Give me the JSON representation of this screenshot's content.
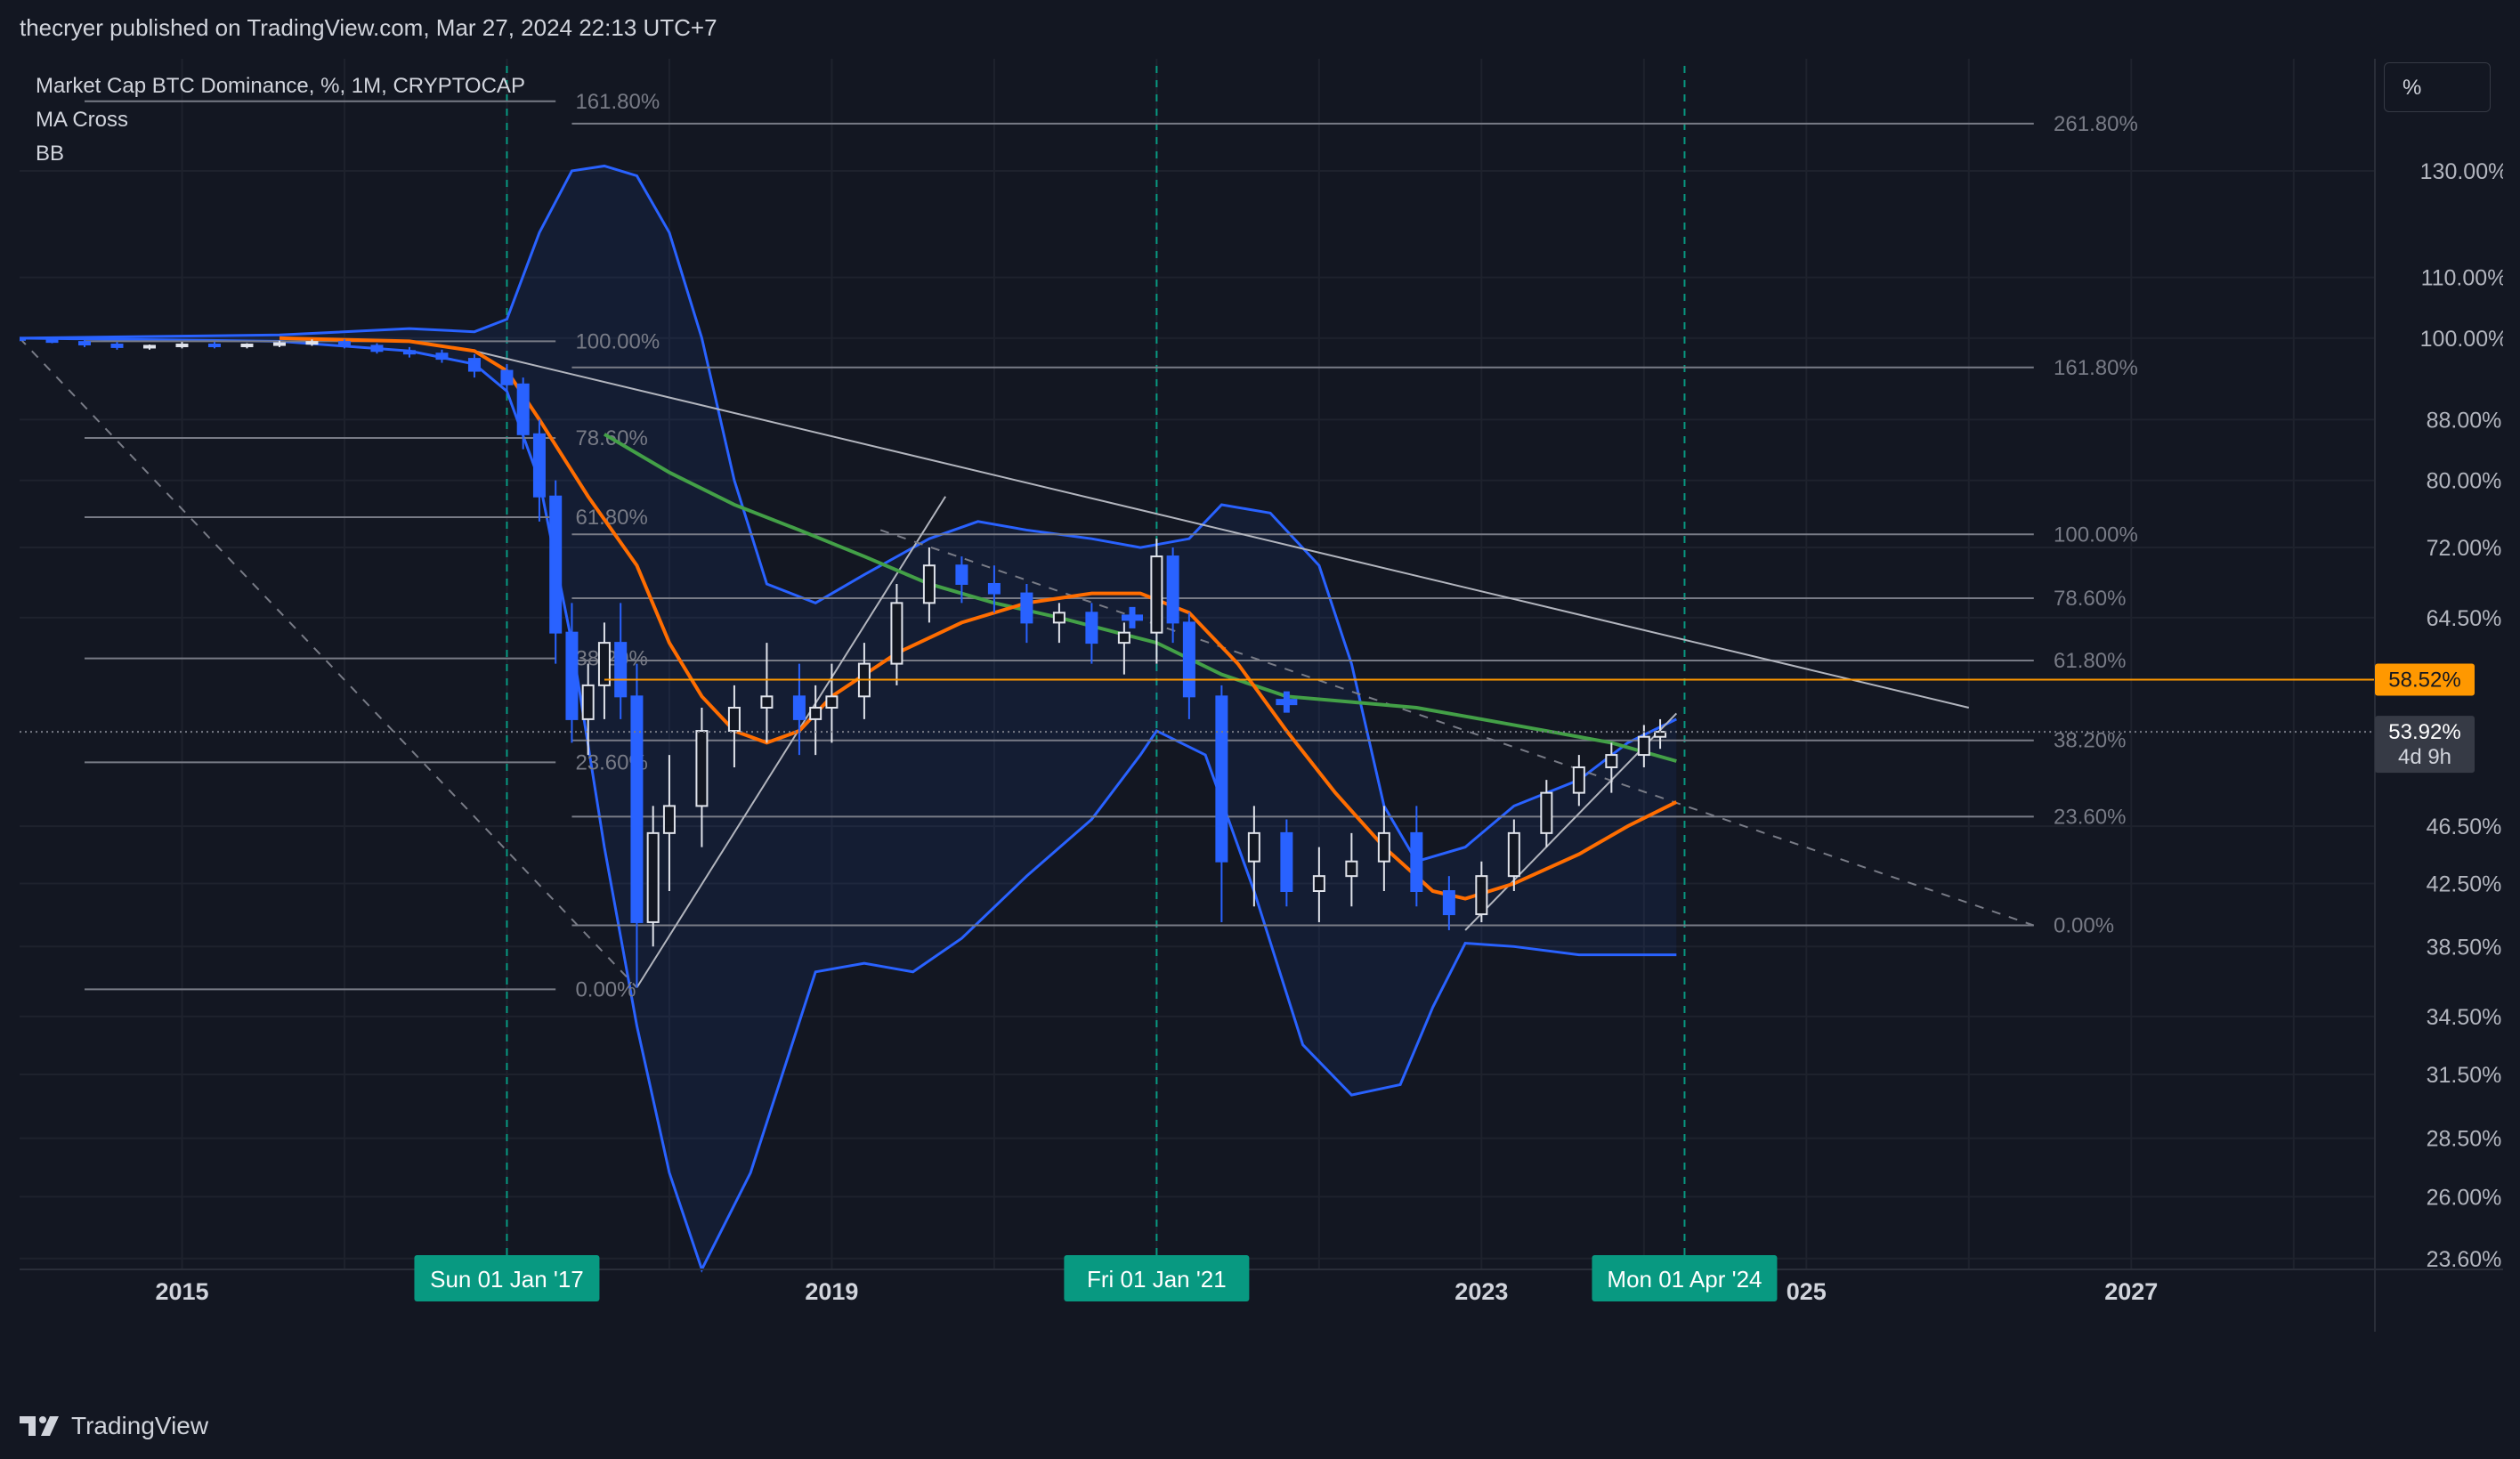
{
  "header": {
    "publisher": "thecryer published on TradingView.com, Mar 27, 2024 22:13 UTC+7"
  },
  "legend": {
    "symbol": "Market Cap BTC Dominance, %, 1M, CRYPTOCAP",
    "indicator1": "MA Cross",
    "indicator2": "BB"
  },
  "scale_button": {
    "label": "%"
  },
  "footer": {
    "brand": "TradingView"
  },
  "colors": {
    "background": "#131722",
    "grid": "#1e222d",
    "candle": "#2962ff",
    "bollinger": "#2962ff",
    "ma_fast": "#ff6d00",
    "ma_slow": "#43a047",
    "fib": "#787b86",
    "highlight_line": "#ff9800",
    "time_marker": "#089981"
  },
  "chart_data": {
    "type": "candlestick",
    "title": "Market Cap BTC Dominance, %, 1M, CRYPTOCAP",
    "y_scale": "log",
    "ylim": [
      23.2,
      155
    ],
    "xlim": [
      2014.0,
      2028.5
    ],
    "y_ticks": [
      "130.00%",
      "110.00%",
      "100.00%",
      "88.00%",
      "80.00%",
      "72.00%",
      "64.50%",
      "46.50%",
      "42.50%",
      "38.50%",
      "34.50%",
      "31.50%",
      "28.50%",
      "26.00%",
      "23.60%"
    ],
    "x_ticks": [
      "2015",
      "2019",
      "2023",
      "2027"
    ],
    "x_tick_years": [
      2015,
      2019,
      2023,
      2027
    ],
    "x_tick_partial": {
      "label": "025",
      "year": 2025
    },
    "time_markers": [
      {
        "label": "Sun 01 Jan '17",
        "year": 2017.0
      },
      {
        "label": "Fri 01 Jan '21",
        "year": 2021.0
      },
      {
        "label": "Mon 01 Apr '24",
        "year": 2024.25
      }
    ],
    "price_labels": [
      {
        "label": "58.52%",
        "value": 58.52,
        "color": "#ff9800"
      },
      {
        "label": "53.92%",
        "sublabel": "4d 9h",
        "value": 53.92,
        "color": "#363a45"
      }
    ],
    "horizontal_line": {
      "value": 58.52
    },
    "last_price_line": {
      "value": 53.92
    },
    "fib_sets": [
      {
        "x_start": 2014.4,
        "x_end": 2017.3,
        "label_year": 2017.4,
        "levels": [
          {
            "label": "161.80%",
            "value": 145
          },
          {
            "label": "100.00%",
            "value": 99.5
          },
          {
            "label": "78.60%",
            "value": 85.5
          },
          {
            "label": "61.80%",
            "value": 75.5
          },
          {
            "label": "38.20%",
            "value": 60.5
          },
          {
            "label": "23.60%",
            "value": 51.4
          },
          {
            "label": "0.00%",
            "value": 36.0
          }
        ]
      },
      {
        "x_start": 2017.4,
        "x_end": 2026.4,
        "label_year": 2026.5,
        "levels": [
          {
            "label": "261.80%",
            "value": 140
          },
          {
            "label": "161.80%",
            "value": 95.5
          },
          {
            "label": "100.00%",
            "value": 73.5
          },
          {
            "label": "78.60%",
            "value": 66.5
          },
          {
            "label": "61.80%",
            "value": 60.3
          },
          {
            "label": "38.20%",
            "value": 53.2
          },
          {
            "label": "23.60%",
            "value": 47.2
          },
          {
            "label": "0.00%",
            "value": 39.8
          }
        ]
      }
    ],
    "trend_lines": [
      {
        "style": "solid",
        "points": [
          [
            2016.8,
            98
          ],
          [
            2026.0,
            56.0
          ]
        ]
      },
      {
        "style": "solid",
        "points": [
          [
            2017.8,
            36.1
          ],
          [
            2019.7,
            78.0
          ]
        ]
      },
      {
        "style": "solid",
        "points": [
          [
            2022.9,
            39.5
          ],
          [
            2024.2,
            55.5
          ]
        ]
      },
      {
        "style": "dashed",
        "points": [
          [
            2014.0,
            100
          ],
          [
            2017.8,
            36.1
          ]
        ]
      },
      {
        "style": "dashed",
        "points": [
          [
            2019.3,
            74.0
          ],
          [
            2026.4,
            39.8
          ]
        ]
      }
    ],
    "series": [
      {
        "name": "Candles",
        "kind": "candlestick",
        "ohlc": [
          [
            2014.0,
            100,
            100,
            99.5,
            99.8
          ],
          [
            2014.2,
            99.8,
            100,
            99.2,
            99.4
          ],
          [
            2014.4,
            99.4,
            99.8,
            98.6,
            99
          ],
          [
            2014.6,
            99,
            99.4,
            98.2,
            98.6
          ],
          [
            2014.8,
            98.6,
            99,
            98.2,
            98.8
          ],
          [
            2015.0,
            98.8,
            99.4,
            98.4,
            99
          ],
          [
            2015.2,
            99,
            99.4,
            98.4,
            98.8
          ],
          [
            2015.4,
            98.8,
            99.2,
            98.4,
            99
          ],
          [
            2015.6,
            99,
            99.6,
            98.6,
            99.2
          ],
          [
            2015.8,
            99.2,
            99.8,
            98.8,
            99.4
          ],
          [
            2016.0,
            99.4,
            99.8,
            98.4,
            98.8
          ],
          [
            2016.2,
            98.8,
            99.2,
            97.6,
            98
          ],
          [
            2016.4,
            98,
            98.6,
            97,
            97.6
          ],
          [
            2016.6,
            97.6,
            98.2,
            96.2,
            96.8
          ],
          [
            2016.8,
            96.8,
            97.5,
            94,
            95
          ],
          [
            2017.0,
            95,
            96,
            92,
            93
          ],
          [
            2017.1,
            93,
            94,
            84,
            86
          ],
          [
            2017.2,
            86,
            88,
            75,
            78
          ],
          [
            2017.3,
            78,
            80,
            60,
            63
          ],
          [
            2017.4,
            63,
            66,
            53,
            55
          ],
          [
            2017.5,
            55,
            60,
            52,
            58
          ],
          [
            2017.6,
            58,
            64,
            55,
            62
          ],
          [
            2017.7,
            62,
            66,
            55,
            57
          ],
          [
            2017.8,
            57,
            60,
            36.1,
            40
          ],
          [
            2017.9,
            40,
            48,
            38.5,
            46
          ],
          [
            2018.0,
            46,
            52,
            42,
            48
          ],
          [
            2018.2,
            48,
            56,
            45,
            54
          ],
          [
            2018.4,
            54,
            58,
            51,
            56
          ],
          [
            2018.6,
            56,
            62,
            53,
            57
          ],
          [
            2018.8,
            57,
            60,
            52,
            55
          ],
          [
            2018.9,
            55,
            58,
            52,
            56
          ],
          [
            2019.0,
            56,
            60,
            53,
            57
          ],
          [
            2019.2,
            57,
            62,
            55,
            60
          ],
          [
            2019.4,
            60,
            68,
            58,
            66
          ],
          [
            2019.6,
            66,
            72,
            64,
            70
          ],
          [
            2019.8,
            70,
            71,
            66,
            68
          ],
          [
            2020.0,
            68,
            70,
            65,
            67
          ],
          [
            2020.2,
            67,
            68,
            62,
            64
          ],
          [
            2020.4,
            64,
            66,
            62,
            65
          ],
          [
            2020.6,
            65,
            66,
            60,
            62
          ],
          [
            2020.8,
            62,
            64,
            59,
            63
          ],
          [
            2021.0,
            63,
            73,
            60,
            71
          ],
          [
            2021.1,
            71,
            72,
            62,
            64
          ],
          [
            2021.2,
            64,
            65,
            55,
            57
          ],
          [
            2021.4,
            57,
            58,
            40,
            44
          ],
          [
            2021.6,
            44,
            48,
            41,
            46
          ],
          [
            2021.8,
            46,
            47,
            41,
            42
          ],
          [
            2022.0,
            42,
            45,
            40,
            43
          ],
          [
            2022.2,
            43,
            46,
            41,
            44
          ],
          [
            2022.4,
            44,
            48,
            42,
            46
          ],
          [
            2022.6,
            46,
            48,
            41,
            42
          ],
          [
            2022.8,
            42,
            43,
            39.5,
            40.5
          ],
          [
            2023.0,
            40.5,
            44,
            40,
            43
          ],
          [
            2023.2,
            43,
            47,
            42,
            46
          ],
          [
            2023.4,
            46,
            50,
            45,
            49
          ],
          [
            2023.6,
            49,
            52,
            48,
            51
          ],
          [
            2023.8,
            51,
            53,
            49,
            52
          ],
          [
            2024.0,
            52,
            54.5,
            51,
            53.5
          ],
          [
            2024.1,
            53.5,
            55,
            52.5,
            53.92
          ]
        ]
      },
      {
        "name": "MA fast",
        "kind": "line",
        "points": [
          [
            2015.6,
            100
          ],
          [
            2016.4,
            99.5
          ],
          [
            2016.8,
            98
          ],
          [
            2017.0,
            95
          ],
          [
            2017.2,
            88
          ],
          [
            2017.5,
            78
          ],
          [
            2017.8,
            70
          ],
          [
            2018.0,
            62
          ],
          [
            2018.2,
            57
          ],
          [
            2018.4,
            54
          ],
          [
            2018.6,
            53
          ],
          [
            2018.8,
            54
          ],
          [
            2019.0,
            57
          ],
          [
            2019.4,
            61
          ],
          [
            2019.8,
            64
          ],
          [
            2020.2,
            66
          ],
          [
            2020.6,
            67
          ],
          [
            2020.9,
            67
          ],
          [
            2021.2,
            65
          ],
          [
            2021.5,
            60
          ],
          [
            2021.8,
            54
          ],
          [
            2022.1,
            49
          ],
          [
            2022.4,
            45
          ],
          [
            2022.7,
            42
          ],
          [
            2022.9,
            41.5
          ],
          [
            2023.2,
            42.5
          ],
          [
            2023.6,
            44.5
          ],
          [
            2023.9,
            46.5
          ],
          [
            2024.2,
            48.3
          ]
        ]
      },
      {
        "name": "MA slow",
        "kind": "line",
        "points": [
          [
            2017.6,
            86
          ],
          [
            2018.0,
            81
          ],
          [
            2018.4,
            77
          ],
          [
            2018.8,
            74
          ],
          [
            2019.2,
            71
          ],
          [
            2019.6,
            68
          ],
          [
            2020.0,
            66
          ],
          [
            2020.4,
            64.5
          ],
          [
            2021.0,
            62
          ],
          [
            2021.4,
            59
          ],
          [
            2021.8,
            57
          ],
          [
            2022.2,
            56.5
          ],
          [
            2022.6,
            56
          ],
          [
            2023.0,
            55
          ],
          [
            2023.4,
            54
          ],
          [
            2023.8,
            53
          ],
          [
            2024.2,
            51.5
          ]
        ]
      },
      {
        "name": "BB upper",
        "kind": "line",
        "points": [
          [
            2014.0,
            100
          ],
          [
            2015.6,
            100.5
          ],
          [
            2016.4,
            101.5
          ],
          [
            2016.8,
            101
          ],
          [
            2017.0,
            103
          ],
          [
            2017.2,
            118
          ],
          [
            2017.4,
            130
          ],
          [
            2017.6,
            131
          ],
          [
            2017.8,
            129
          ],
          [
            2018.0,
            118
          ],
          [
            2018.2,
            100
          ],
          [
            2018.4,
            80
          ],
          [
            2018.6,
            68
          ],
          [
            2018.9,
            66
          ],
          [
            2019.2,
            69
          ],
          [
            2019.6,
            73
          ],
          [
            2019.9,
            75
          ],
          [
            2020.2,
            74
          ],
          [
            2020.6,
            73
          ],
          [
            2020.9,
            72
          ],
          [
            2021.2,
            73
          ],
          [
            2021.4,
            77
          ],
          [
            2021.7,
            76
          ],
          [
            2022.0,
            70
          ],
          [
            2022.2,
            60
          ],
          [
            2022.4,
            48
          ],
          [
            2022.6,
            44
          ],
          [
            2022.9,
            45
          ],
          [
            2023.2,
            48
          ],
          [
            2023.6,
            50
          ],
          [
            2023.9,
            53
          ],
          [
            2024.2,
            55
          ]
        ]
      },
      {
        "name": "BB lower",
        "kind": "line",
        "points": [
          [
            2014.0,
            100
          ],
          [
            2015.6,
            99.5
          ],
          [
            2016.4,
            98
          ],
          [
            2016.8,
            96
          ],
          [
            2017.0,
            92
          ],
          [
            2017.2,
            80
          ],
          [
            2017.4,
            62
          ],
          [
            2017.6,
            45
          ],
          [
            2017.8,
            34
          ],
          [
            2018.0,
            27
          ],
          [
            2018.2,
            23.2
          ],
          [
            2018.5,
            27
          ],
          [
            2018.9,
            37
          ],
          [
            2019.2,
            37.5
          ],
          [
            2019.5,
            37
          ],
          [
            2019.8,
            39
          ],
          [
            2020.2,
            43
          ],
          [
            2020.6,
            47
          ],
          [
            2020.9,
            52
          ],
          [
            2021.0,
            54
          ],
          [
            2021.3,
            52
          ],
          [
            2021.6,
            42
          ],
          [
            2021.9,
            33
          ],
          [
            2022.2,
            30.5
          ],
          [
            2022.5,
            31
          ],
          [
            2022.7,
            35
          ],
          [
            2022.9,
            38.7
          ],
          [
            2023.2,
            38.5
          ],
          [
            2023.6,
            38
          ],
          [
            2023.9,
            38
          ],
          [
            2024.2,
            38
          ]
        ]
      }
    ],
    "cross_markers": [
      [
        2020.85,
        64.5
      ],
      [
        2021.8,
        56.5
      ]
    ]
  }
}
